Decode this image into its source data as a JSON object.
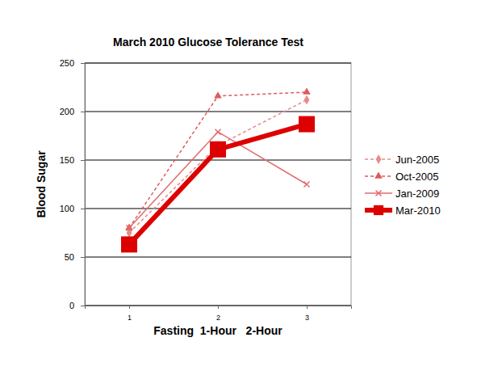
{
  "chart_data": {
    "type": "line",
    "title": "March 2010 Glucose Tolerance Test",
    "x_label": "Fasting  1-Hour   2-Hour",
    "y_label": "Blood Sugar",
    "x": [
      1,
      2,
      3
    ],
    "xlim": [
      0.5,
      3.5
    ],
    "xticks": [
      1,
      2,
      3
    ],
    "ylim": [
      0,
      250
    ],
    "yticks": [
      0,
      50,
      100,
      150,
      200,
      250
    ],
    "grid": true,
    "legend": "right",
    "series": [
      {
        "name": "Jun-2005",
        "color": "#e88a8a",
        "marker": "diamond",
        "line_style": "dashed",
        "values": [
          75,
          165,
          212
        ]
      },
      {
        "name": "Oct-2005",
        "color": "#e05a5a",
        "marker": "triangle",
        "line_style": "dashed",
        "values": [
          80,
          216,
          220
        ]
      },
      {
        "name": "Jan-2009",
        "color": "#e06c6c",
        "marker": "x",
        "line_style": "solid",
        "values": [
          80,
          179,
          125
        ]
      },
      {
        "name": "Mar-2010",
        "color": "#dd0000",
        "marker": "square",
        "line_style": "solid",
        "values": [
          63,
          161,
          187
        ]
      }
    ]
  }
}
